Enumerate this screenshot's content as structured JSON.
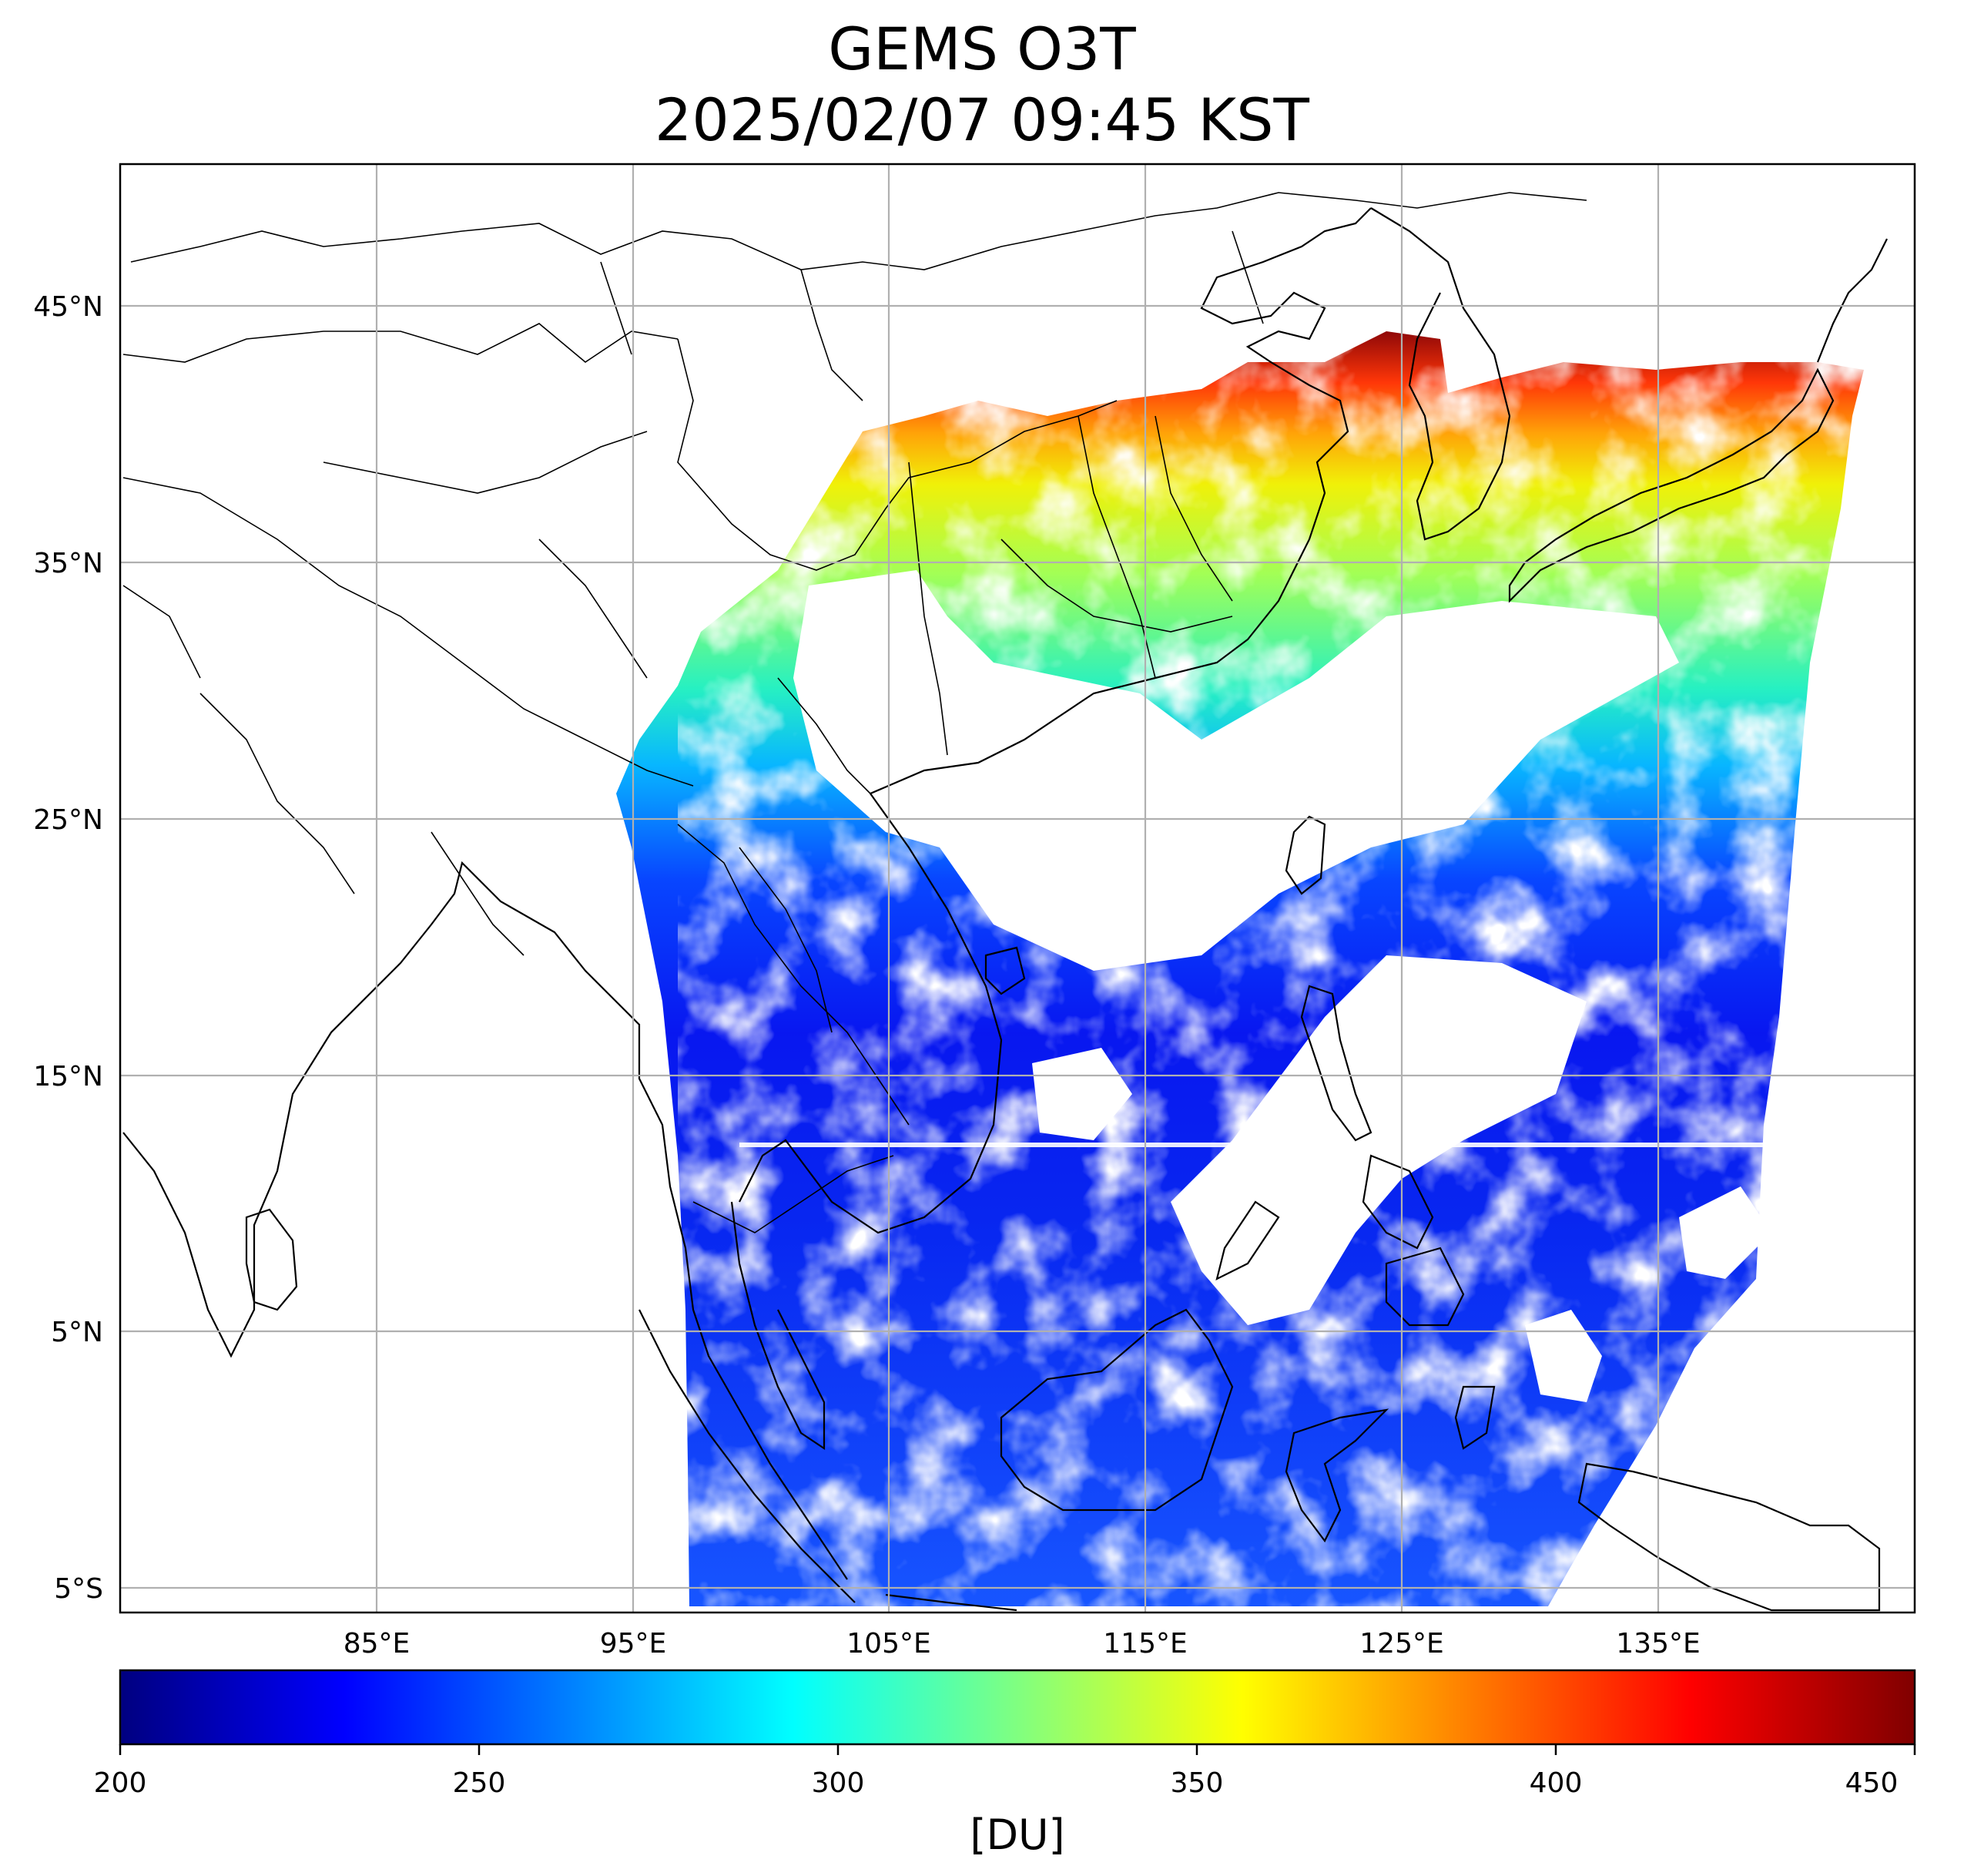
{
  "title": "GEMS O3T",
  "subtitle": "2025/02/07 09:45 KST",
  "map": {
    "lon_range": [
      75,
      145
    ],
    "lat_range": [
      -6,
      50.5
    ],
    "lon_ticks": [
      "85°E",
      "95°E",
      "105°E",
      "115°E",
      "125°E",
      "135°E"
    ],
    "lat_ticks": [
      "45°N",
      "35°N",
      "25°N",
      "15°N",
      "5°N",
      "5°S"
    ],
    "grid": true
  },
  "colorbar": {
    "colormap": "jet",
    "min": 200,
    "max": 450,
    "ticks": [
      "200",
      "250",
      "300",
      "350",
      "400",
      "450"
    ],
    "label": "[DU]"
  }
}
